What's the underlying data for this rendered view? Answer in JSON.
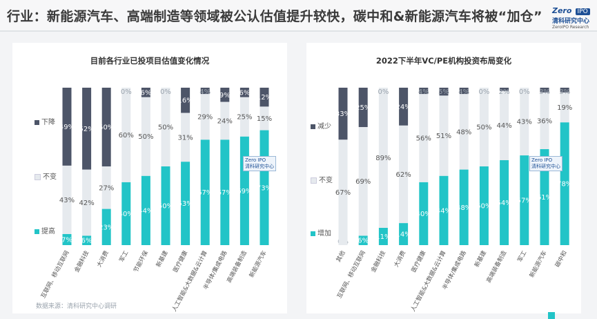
{
  "header": {
    "title": "行业：新能源汽车、高端制造等领域被公认估值提升较快，碳中和&新能源汽车将被“加仓”",
    "logo": {
      "zero": "Zero",
      "badge": "IPO",
      "name": "清科研究中心",
      "en": "ZeroIPO Research"
    }
  },
  "source": "数据来源：清科研究中心调研",
  "watermark": {
    "line1": "Zero IPO",
    "line2": "清科研究中心"
  },
  "colors": {
    "up": "#22c4c7",
    "same": "#e6eaee",
    "down": "#4d5568",
    "title": "#3a3a3a"
  },
  "chart_data": [
    {
      "type": "bar",
      "stacked": true,
      "title": "目前各行业已投项目估值变化情况",
      "categories": [
        "互联网、移动互联网",
        "金融科技",
        "大消费",
        "军工",
        "节能环保",
        "新基建",
        "医疗健康",
        "人工智能&大数据&云计算",
        "半导体/集成电路",
        "高端装备制造",
        "新能源汽车"
      ],
      "series": [
        {
          "name": "提高",
          "values": [
            7,
            6,
            23,
            40,
            44,
            50,
            53,
            67,
            67,
            69,
            73
          ],
          "labels": [
            "7%",
            "6%",
            "23%",
            "40%",
            "44%",
            "50%",
            "53%",
            "67%",
            "67%",
            "69%",
            "73%"
          ]
        },
        {
          "name": "不变",
          "values": [
            43,
            42,
            27,
            60,
            50,
            50,
            31,
            29,
            24,
            25,
            15
          ],
          "labels": [
            "43%",
            "42%",
            "27%",
            "60%",
            "50%",
            "50%",
            "31%",
            "29%",
            "24%",
            "25%",
            "15%"
          ]
        },
        {
          "name": "下降",
          "values": [
            49,
            52,
            50,
            0,
            6,
            0,
            16,
            4,
            9,
            6,
            12
          ],
          "labels": [
            "49%",
            "52%",
            "50%",
            "0%",
            "6%",
            "0%",
            "16%",
            "4%",
            "9%",
            "6%",
            "12%"
          ]
        }
      ],
      "legend": [
        "下降",
        "不变",
        "提高"
      ],
      "ylim": [
        0,
        100
      ]
    },
    {
      "type": "bar",
      "stacked": true,
      "title": "2022下半年VC/PE机构投资布局变化",
      "categories": [
        "其他",
        "互联网、移动互联网",
        "金融科技",
        "大消费",
        "医疗健康",
        "人工智能&大数据&云计算",
        "半导体/集成电路",
        "新基建",
        "高端装备制造",
        "军工",
        "新能源汽车",
        "碳中和"
      ],
      "series": [
        {
          "name": "增加",
          "values": [
            0,
            6,
            11,
            14,
            40,
            44,
            48,
            50,
            54,
            57,
            61,
            78
          ],
          "labels": [
            "0%",
            "6%",
            "11%",
            "14%",
            "40%",
            "44%",
            "48%",
            "50%",
            "54%",
            "57%",
            "61%",
            "78%"
          ]
        },
        {
          "name": "不变",
          "values": [
            67,
            69,
            89,
            62,
            56,
            51,
            48,
            50,
            44,
            43,
            36,
            19
          ],
          "labels": [
            "67%",
            "69%",
            "89%",
            "62%",
            "56%",
            "51%",
            "48%",
            "50%",
            "44%",
            "43%",
            "36%",
            "19%"
          ]
        },
        {
          "name": "减少",
          "values": [
            33,
            25,
            0,
            24,
            4,
            5,
            4,
            0,
            2,
            0,
            3,
            3
          ],
          "labels": [
            "33%",
            "25%",
            "0%",
            "24%",
            "4%",
            "5%",
            "4%",
            "0%",
            "2%",
            "0%",
            "3%",
            "3%"
          ]
        }
      ],
      "legend": [
        "减少",
        "不变",
        "增加"
      ],
      "ylim": [
        0,
        100
      ]
    }
  ]
}
